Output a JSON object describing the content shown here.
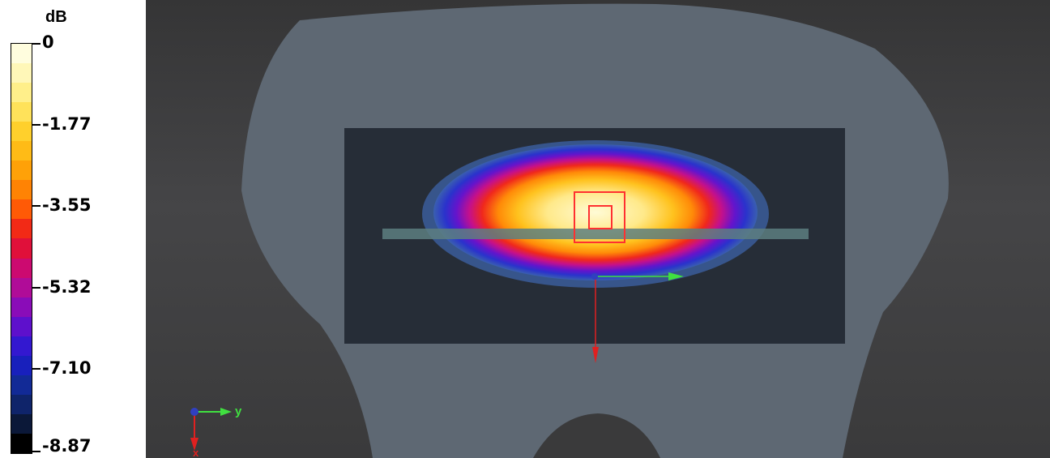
{
  "legend": {
    "unit": "dB",
    "ticks": [
      "0",
      "-1.77",
      "-3.55",
      "-5.32",
      "-7.10",
      "-8.87"
    ],
    "bands": [
      "#fffdde",
      "#fff7b8",
      "#ffef8a",
      "#ffe25a",
      "#ffd02c",
      "#ffbb16",
      "#ffa108",
      "#ff8304",
      "#ff5a06",
      "#f22a16",
      "#e0103a",
      "#cc0a70",
      "#b00c98",
      "#8a0cb8",
      "#5e10cc",
      "#3318d0",
      "#1820bc",
      "#122a96",
      "#0f246a",
      "#0b1838",
      "#000000"
    ]
  },
  "viewport": {
    "axis_triad": {
      "y_label": "y",
      "x_label": "x"
    },
    "colors": {
      "phantom": "#5e6873",
      "plane": "#262d37",
      "probe": "#5d7f80",
      "marker": "#ff3030",
      "axis_x": "#e02020",
      "axis_y": "#40e040"
    }
  }
}
